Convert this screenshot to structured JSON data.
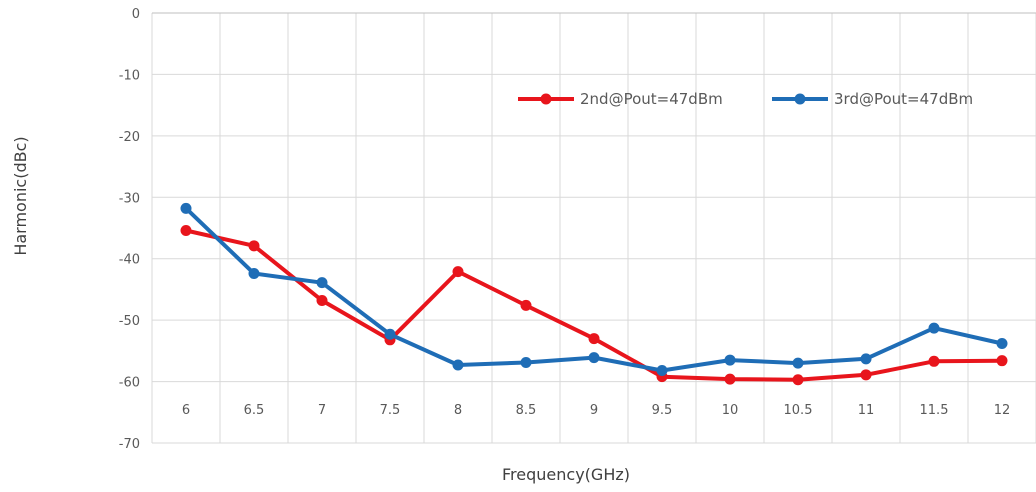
{
  "chart_data": {
    "type": "line",
    "xlabel": "Frequency(GHz)",
    "ylabel": "Harmonic(dBc)",
    "categories": [
      "6",
      "6.5",
      "7",
      "7.5",
      "8",
      "8.5",
      "9",
      "9.5",
      "10",
      "10.5",
      "11",
      "11.5",
      "12"
    ],
    "ylim": [
      -70,
      0
    ],
    "yticks": [
      "0",
      "-10",
      "-20",
      "-30",
      "-40",
      "-50",
      "-60",
      "-70"
    ],
    "grid": true,
    "legend_position": "top-right",
    "series": [
      {
        "name": "2nd@Pout=47dBm",
        "color": "#e8151c",
        "values": [
          -35.4,
          -37.9,
          -46.8,
          -53.2,
          -42.1,
          -47.6,
          -53.0,
          -59.2,
          -59.6,
          -59.7,
          -58.9,
          -56.7,
          -56.6
        ]
      },
      {
        "name": "3rd@Pout=47dBm",
        "color": "#1f6db6",
        "values": [
          -31.8,
          -42.4,
          -43.9,
          -52.3,
          -57.3,
          -56.9,
          -56.1,
          -58.2,
          -56.5,
          -57.0,
          -56.3,
          -51.3,
          -53.8
        ]
      }
    ]
  }
}
